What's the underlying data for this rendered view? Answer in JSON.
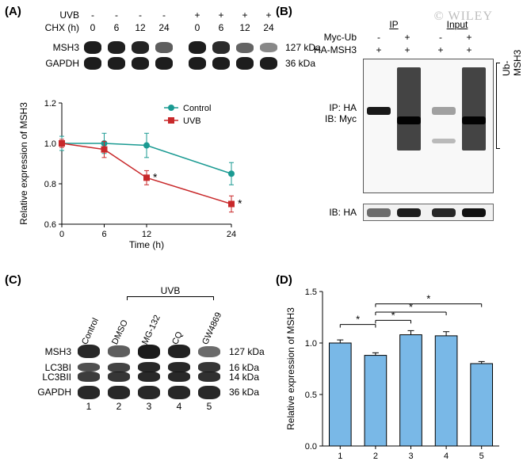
{
  "watermark": "© WILEY",
  "panelA": {
    "label": "(A)",
    "header": {
      "row1_name": "UVB",
      "row1_vals": [
        "-",
        "-",
        "-",
        "-",
        "+",
        "+",
        "+",
        "+"
      ],
      "row2_name": "CHX (h)",
      "row2_vals": [
        "0",
        "6",
        "12",
        "24",
        "0",
        "6",
        "12",
        "24"
      ]
    },
    "blot_rows": [
      {
        "name": "MSH3",
        "kda": "127 kDa",
        "intensities": [
          1.0,
          0.98,
          0.95,
          0.55,
          1.0,
          0.9,
          0.5,
          0.25
        ]
      },
      {
        "name": "GAPDH",
        "kda": "36 kDa",
        "intensities": [
          1.0,
          1.0,
          1.0,
          1.0,
          1.0,
          1.0,
          1.0,
          1.0
        ]
      }
    ],
    "chart": {
      "type": "line",
      "ylabel": "Relative expression of MSH3",
      "xlabel": "Time (h)",
      "xticks": [
        0,
        6,
        12,
        24
      ],
      "yticks": [
        0.6,
        0.8,
        1.0,
        1.2
      ],
      "ylim": [
        0.6,
        1.2
      ],
      "xlim": [
        0,
        24
      ],
      "series": [
        {
          "name": "Control",
          "color": "#1a9a92",
          "marker": "circle",
          "x": [
            0,
            6,
            12,
            24
          ],
          "y": [
            1.0,
            1.0,
            0.99,
            0.85
          ],
          "err": [
            0.035,
            0.05,
            0.06,
            0.055
          ],
          "sig": [
            false,
            false,
            false,
            false
          ]
        },
        {
          "name": "UVB",
          "color": "#c8282a",
          "marker": "square",
          "x": [
            0,
            6,
            12,
            24
          ],
          "y": [
            1.0,
            0.97,
            0.83,
            0.7
          ],
          "err": [
            0.02,
            0.04,
            0.035,
            0.04
          ],
          "sig": [
            false,
            false,
            true,
            true
          ]
        }
      ],
      "label_fontsize": 12,
      "tick_fontsize": 11,
      "legend_fontsize": 11
    }
  },
  "panelB": {
    "label": "(B)",
    "topgroups": [
      "IP",
      "Input"
    ],
    "rows": [
      {
        "name": "Myc-Ub",
        "vals": [
          "-",
          "+",
          "-",
          "+"
        ]
      },
      {
        "name": "HA-MSH3",
        "vals": [
          "+",
          "+",
          "+",
          "+"
        ]
      }
    ],
    "side_text1": "IP: HA",
    "side_text2": "IB: Myc",
    "bottom_label": "IB: HA",
    "bracket_label": "Ub-MSH3"
  },
  "panelC": {
    "label": "(C)",
    "uvb_brace": "UVB",
    "conditions": [
      "Control",
      "DMSO",
      "MG-132",
      "CQ",
      "GW4869"
    ],
    "rows": [
      {
        "name": "MSH3",
        "kda": "127 kDa",
        "intensities": [
          1.0,
          0.6,
          1.1,
          1.05,
          0.5
        ]
      },
      {
        "name": "LC3BI",
        "kda": "16 kDa",
        "intensities": [
          0.7,
          0.8,
          1.0,
          1.0,
          0.9
        ]
      },
      {
        "name": "LC3BII",
        "kda": "14 kDa",
        "intensities": [
          0.85,
          0.9,
          1.0,
          1.0,
          0.95
        ]
      },
      {
        "name": "GAPDH",
        "kda": "36 kDa",
        "intensities": [
          1.0,
          1.0,
          1.0,
          1.0,
          1.0
        ]
      }
    ],
    "lane_numbers": [
      "1",
      "2",
      "3",
      "4",
      "5"
    ]
  },
  "panelD": {
    "label": "(D)",
    "type": "bar",
    "ylabel": "Relative expression of MSH3",
    "xticks": [
      "1",
      "2",
      "3",
      "4",
      "5"
    ],
    "yticks": [
      0,
      0.5,
      1.0,
      1.5
    ],
    "ylim": [
      0,
      1.5
    ],
    "values": [
      1.0,
      0.88,
      1.08,
      1.07,
      0.8
    ],
    "err": [
      0.03,
      0.025,
      0.04,
      0.04,
      0.02
    ],
    "bar_color": "#79b8e7",
    "bar_edge": "#000000",
    "sig_mark": "*",
    "sig_lines": [
      {
        "from": 1,
        "to": 2,
        "y": 1.18
      },
      {
        "from": 2,
        "to": 3,
        "y": 1.22
      },
      {
        "from": 2,
        "to": 4,
        "y": 1.3
      },
      {
        "from": 2,
        "to": 5,
        "y": 1.38
      }
    ],
    "label_fontsize": 12,
    "tick_fontsize": 11
  },
  "colors": {
    "text": "#000000",
    "bg": "#ffffff"
  }
}
